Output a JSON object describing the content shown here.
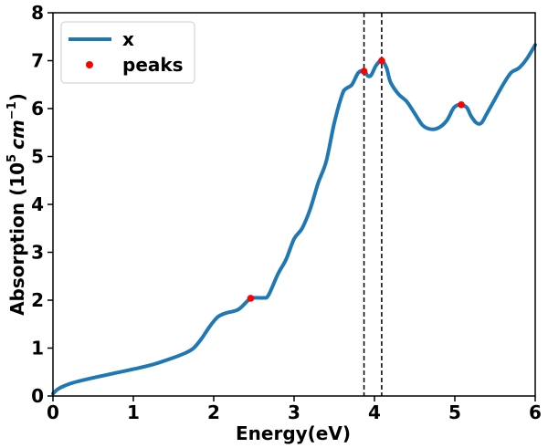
{
  "chart_data": {
    "type": "line",
    "title": "",
    "xlabel": "Energy(eV)",
    "ylabel_parts": {
      "base": "Absorption (10",
      "exp": "5",
      "unit": "cm",
      "unit_exp": "−1",
      "close": ")"
    },
    "xlim": [
      0,
      6
    ],
    "ylim": [
      0,
      8
    ],
    "xticks": [
      "0",
      "1",
      "2",
      "3",
      "4",
      "5",
      "6"
    ],
    "yticks": [
      "0",
      "1",
      "2",
      "3",
      "4",
      "5",
      "6",
      "7",
      "8"
    ],
    "grid": false,
    "legend": {
      "location": "top-left",
      "entries": [
        {
          "label": "x",
          "kind": "line",
          "color": "#1f77b4"
        },
        {
          "label": "peaks",
          "kind": "marker",
          "color": "#ff0000"
        }
      ]
    },
    "series": [
      {
        "name": "x",
        "color": "#1f77b4",
        "x": [
          0.0,
          0.05,
          0.1,
          0.2,
          0.3,
          0.5,
          0.75,
          1.0,
          1.25,
          1.5,
          1.65,
          1.75,
          1.85,
          1.95,
          2.05,
          2.15,
          2.3,
          2.4,
          2.46,
          2.55,
          2.62,
          2.68,
          2.8,
          2.9,
          3.0,
          3.1,
          3.2,
          3.3,
          3.4,
          3.5,
          3.6,
          3.65,
          3.72,
          3.8,
          3.87,
          3.92,
          3.96,
          4.02,
          4.09,
          4.15,
          4.2,
          4.3,
          4.4,
          4.5,
          4.6,
          4.7,
          4.8,
          4.9,
          4.98,
          5.03,
          5.08,
          5.15,
          5.2,
          5.27,
          5.33,
          5.4,
          5.5,
          5.6,
          5.7,
          5.8,
          5.9,
          6.0
        ],
        "y": [
          0.05,
          0.13,
          0.18,
          0.25,
          0.3,
          0.38,
          0.47,
          0.56,
          0.66,
          0.8,
          0.9,
          1.0,
          1.2,
          1.45,
          1.65,
          1.73,
          1.8,
          1.95,
          2.04,
          2.05,
          2.05,
          2.1,
          2.55,
          2.85,
          3.28,
          3.5,
          3.9,
          4.45,
          4.9,
          5.7,
          6.3,
          6.42,
          6.5,
          6.75,
          6.78,
          6.68,
          6.7,
          6.9,
          7.0,
          6.85,
          6.55,
          6.3,
          6.15,
          5.9,
          5.65,
          5.57,
          5.6,
          5.75,
          6.0,
          6.07,
          6.08,
          6.02,
          5.85,
          5.7,
          5.7,
          5.9,
          6.2,
          6.5,
          6.75,
          6.85,
          7.05,
          7.33
        ]
      }
    ],
    "peaks": {
      "name": "peaks",
      "color": "#ff0000",
      "x": [
        2.46,
        3.87,
        4.09,
        5.08
      ],
      "y": [
        2.04,
        6.78,
        7.0,
        6.08
      ]
    },
    "vlines": {
      "style": "dashed",
      "color": "#000000",
      "x": [
        3.87,
        4.09
      ]
    }
  }
}
